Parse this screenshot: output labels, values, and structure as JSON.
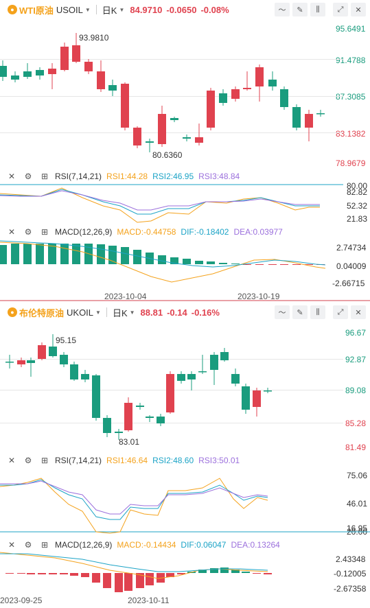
{
  "panels": [
    {
      "id": "wti",
      "name": "WTI原油",
      "code": "USOIL",
      "period": "日K",
      "price": "84.9710",
      "change": "-0.0650",
      "pct": "-0.08%",
      "price_axis": [
        "95.6491",
        "91.4788",
        "87.3085",
        "83.1382",
        "78.9679"
      ],
      "high_marker": "93.9810",
      "low_marker": "80.6360",
      "rsi": {
        "name": "RSI(7,14,21)",
        "rsi1": "RSI1:44.28",
        "rsi2": "RSI2:46.95",
        "rsi3": "RSI3:48.84",
        "axis": [
          "80.00",
          "82.82",
          "52.32",
          "21.83"
        ]
      },
      "macd": {
        "name": "MACD(12,26,9)",
        "macd": "MACD:-0.44758",
        "dif": "DIF:-0.18402",
        "dea": "DEA:0.03977",
        "axis": [
          "2.74734",
          "0.04009",
          "-2.66715"
        ]
      },
      "dates": [
        "2023-10-04",
        "2023-10-19"
      ]
    },
    {
      "id": "brent",
      "name": "布伦特原油",
      "code": "UKOIL",
      "period": "日K",
      "price": "88.81",
      "change": "-0.14",
      "pct": "-0.16%",
      "price_axis": [
        "96.67",
        "92.87",
        "89.08",
        "85.28",
        "81.49"
      ],
      "high_marker": "95.15",
      "low_marker": "83.01",
      "rsi": {
        "name": "RSI(7,14,21)",
        "rsi1": "RSI1:46.64",
        "rsi2": "RSI2:48.60",
        "rsi3": "RSI3:50.01",
        "axis": [
          "75.06",
          "46.01",
          "20.00",
          "16.95"
        ]
      },
      "macd": {
        "name": "MACD(12,26,9)",
        "macd": "MACD:-0.14434",
        "dif": "DIF:0.06047",
        "dea": "DEA:0.13264",
        "axis": [
          "2.43348",
          "-0.12005",
          "-2.67358"
        ]
      },
      "dates": [
        "2023-09-25",
        "2023-10-11"
      ]
    }
  ],
  "colors": {
    "up": "#e0424f",
    "down": "#1a9c7e",
    "rsi1": "#f4a21c",
    "rsi2": "#1ba3c6",
    "rsi3": "#9b6fdc",
    "accent": "#f4a21c"
  },
  "icons": [
    "crosshair-icon",
    "pen-icon",
    "indicator-icon",
    "expand-icon",
    "close-icon",
    "gear-icon",
    "plus-square-icon",
    "coin-icon"
  ]
}
